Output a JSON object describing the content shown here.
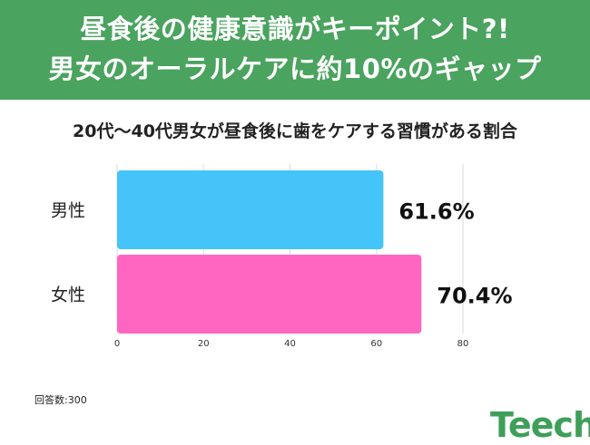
{
  "header": {
    "line1": "昼食後の健康意識がキーポイント?!",
    "line2": "男女のオーラルケアに約10%のギャップ"
  },
  "colors": {
    "header_bg": "#4aa35e",
    "bar_male": "#44c4f8",
    "bar_female": "#ff66c2",
    "logo": "#3f9f59"
  },
  "chart_data": {
    "type": "bar",
    "orientation": "horizontal",
    "title": "20代〜40代男女が昼食後に歯をケアする習慣がある割合",
    "categories": [
      "男性",
      "女性"
    ],
    "values": [
      61.6,
      70.4
    ],
    "value_labels": [
      "61.6%",
      "70.4%"
    ],
    "xlim": [
      0,
      80
    ],
    "xticks": [
      0,
      20,
      40,
      60,
      80
    ],
    "grid": true,
    "legend": "none"
  },
  "footnote": "回答数:300",
  "logo": "Teech"
}
